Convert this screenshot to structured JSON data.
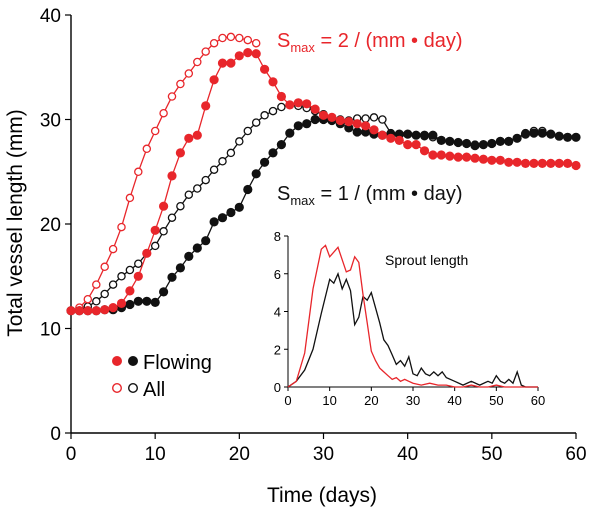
{
  "colors": {
    "red": "#e8262b",
    "black": "#111111",
    "axis": "#000000"
  },
  "chart_data": [
    {
      "type": "line",
      "xlabel": "Time (days)",
      "ylabel": "Total vessel length (mm)",
      "xlim": [
        0,
        60
      ],
      "ylim": [
        0,
        40
      ],
      "xticks": [
        0,
        10,
        20,
        30,
        40,
        50,
        60
      ],
      "yticks": [
        0,
        10,
        20,
        30,
        40
      ],
      "grid": false,
      "annotations": [
        {
          "id": "smax2",
          "text": "S",
          "sub": "max",
          "rest": " = 2 / (mm • day)",
          "color": "red"
        },
        {
          "id": "smax1",
          "text": "S",
          "sub": "max",
          "rest": " = 1 / (mm • day)",
          "color": "black"
        }
      ],
      "legend": {
        "position": "bottom-left",
        "entries": [
          {
            "label": "Flowing",
            "marker": "filled"
          },
          {
            "label": "All",
            "marker": "open"
          }
        ]
      },
      "series": [
        {
          "key": "red_flowing",
          "color": "red",
          "marker": "filled",
          "x": [
            0,
            1,
            2,
            3,
            4,
            5,
            6,
            7,
            8,
            9,
            10,
            11,
            12,
            13,
            14,
            15,
            16,
            17,
            18,
            19,
            20,
            21,
            22,
            23,
            24,
            25,
            26,
            27,
            28,
            29,
            30,
            31,
            32,
            33,
            34,
            35,
            36,
            37,
            38,
            39,
            40,
            41,
            42,
            43,
            44,
            45,
            46,
            47,
            48,
            49,
            50,
            51,
            52,
            53,
            54,
            55,
            56,
            57,
            58,
            59,
            60
          ],
          "y": [
            11.7,
            11.7,
            11.7,
            11.7,
            11.8,
            12.0,
            12.4,
            13.6,
            15.0,
            17.2,
            19.4,
            21.7,
            24.6,
            26.8,
            28.2,
            28.5,
            31.3,
            33.8,
            35.4,
            35.4,
            36.1,
            36.4,
            36.3,
            34.8,
            33.6,
            32.2,
            31.4,
            31.6,
            31.5,
            31.0,
            30.4,
            30.2,
            29.9,
            29.8,
            29.6,
            29.4,
            29.0,
            28.5,
            28.2,
            28.0,
            27.6,
            27.6,
            27.0,
            26.6,
            26.6,
            26.5,
            26.4,
            26.4,
            26.3,
            26.2,
            26.1,
            26.1,
            25.9,
            25.9,
            25.8,
            25.8,
            25.8,
            25.8,
            25.8,
            25.8,
            25.6
          ]
        },
        {
          "key": "red_all",
          "color": "red",
          "marker": "open",
          "x": [
            0,
            1,
            2,
            3,
            4,
            5,
            6,
            7,
            8,
            9,
            10,
            11,
            12,
            13,
            14,
            15,
            16,
            17,
            18,
            19,
            20,
            21,
            22
          ],
          "y": [
            11.7,
            12.0,
            12.8,
            14.2,
            15.9,
            17.6,
            19.7,
            22.5,
            25.0,
            27.2,
            28.9,
            30.6,
            32.2,
            33.4,
            34.4,
            35.5,
            36.5,
            37.3,
            37.8,
            37.9,
            37.8,
            37.6,
            37.3
          ]
        },
        {
          "key": "black_flowing",
          "color": "black",
          "marker": "filled",
          "x": [
            0,
            1,
            2,
            3,
            4,
            5,
            6,
            7,
            8,
            9,
            10,
            11,
            12,
            13,
            14,
            15,
            16,
            17,
            18,
            19,
            20,
            21,
            22,
            23,
            24,
            25,
            26,
            27,
            28,
            29,
            30,
            31,
            32,
            33,
            34,
            35,
            36,
            37,
            38,
            39,
            40,
            41,
            42,
            43,
            44,
            45,
            46,
            47,
            48,
            49,
            50,
            51,
            52,
            53,
            54,
            55,
            56,
            57,
            58,
            59,
            60
          ],
          "y": [
            11.7,
            11.7,
            11.7,
            11.7,
            11.8,
            11.8,
            12.0,
            12.3,
            12.6,
            12.6,
            12.5,
            13.5,
            14.9,
            15.8,
            16.9,
            17.7,
            18.4,
            20.2,
            20.6,
            21.1,
            21.6,
            23.3,
            24.8,
            25.9,
            26.8,
            27.6,
            28.7,
            29.4,
            29.6,
            30.0,
            30.0,
            29.9,
            29.6,
            29.2,
            28.8,
            28.8,
            28.6,
            28.5,
            28.6,
            28.6,
            28.6,
            28.5,
            28.5,
            28.5,
            28.0,
            27.9,
            27.8,
            27.7,
            27.5,
            27.6,
            27.7,
            27.9,
            27.9,
            28.2,
            28.6,
            28.7,
            28.7,
            28.6,
            28.4,
            28.3,
            28.3
          ]
        },
        {
          "key": "black_all",
          "color": "black",
          "marker": "open",
          "x": [
            0,
            1,
            2,
            3,
            4,
            5,
            6,
            7,
            8,
            9,
            10,
            11,
            12,
            13,
            14,
            15,
            16,
            17,
            18,
            19,
            20,
            21,
            22,
            23,
            24,
            25,
            26,
            27,
            28,
            29,
            30,
            31,
            32,
            33,
            34,
            35,
            36,
            37,
            38,
            39,
            40,
            41,
            42,
            43,
            44,
            45,
            46,
            47,
            48,
            49,
            50,
            51,
            52,
            53,
            54,
            55,
            56,
            57,
            58,
            59,
            60
          ],
          "y": [
            11.7,
            11.8,
            12.1,
            12.6,
            13.3,
            14.2,
            15.0,
            15.6,
            16.2,
            17.2,
            17.9,
            19.3,
            20.6,
            21.7,
            22.8,
            23.4,
            24.2,
            25.2,
            26.0,
            26.8,
            27.9,
            28.9,
            29.7,
            30.4,
            30.8,
            31.2,
            31.4,
            31.3,
            31.1,
            30.8,
            30.5,
            30.0,
            30.0,
            29.9,
            30.1,
            30.1,
            30.2,
            30.0,
            28.7,
            28.5,
            28.6,
            28.5,
            28.4,
            28.3,
            28.0,
            27.9,
            27.8,
            27.7,
            27.6,
            27.6,
            27.7,
            27.9,
            27.9,
            28.2,
            28.7,
            28.9,
            28.9,
            28.6,
            28.4,
            28.3,
            28.3
          ]
        }
      ]
    },
    {
      "type": "line",
      "title": "Sprout length",
      "xlim": [
        0,
        60
      ],
      "ylim": [
        0,
        8
      ],
      "xticks": [
        0,
        10,
        20,
        30,
        40,
        50,
        60
      ],
      "yticks": [
        0,
        2,
        4,
        6,
        8
      ],
      "series": [
        {
          "key": "sprout_red",
          "color": "red",
          "x": [
            0,
            2,
            4,
            6,
            8,
            9,
            10,
            12,
            14,
            15,
            16,
            17,
            18,
            19,
            20,
            21,
            22,
            23,
            24,
            25,
            26,
            27,
            28,
            29,
            30,
            32,
            34,
            36,
            38,
            40,
            42,
            44,
            46,
            48,
            50,
            52,
            54,
            56,
            58,
            60
          ],
          "y": [
            0,
            0.3,
            1.8,
            5.2,
            7.3,
            7.5,
            6.9,
            7.4,
            6.1,
            6.2,
            6.9,
            6.6,
            4.9,
            3.4,
            1.9,
            1.4,
            1.0,
            0.8,
            0.6,
            0.4,
            0.5,
            0.3,
            0.4,
            0.3,
            0.2,
            0.1,
            0.2,
            0.1,
            0.1,
            0,
            0,
            0.1,
            0,
            0,
            0.1,
            0,
            0,
            0,
            0,
            0
          ]
        },
        {
          "key": "sprout_black",
          "color": "black",
          "x": [
            0,
            2,
            4,
            6,
            8,
            10,
            11,
            12,
            13,
            14,
            15,
            16,
            17,
            18,
            19,
            20,
            21,
            22,
            23,
            24,
            25,
            26,
            27,
            28,
            29,
            30,
            31,
            32,
            33,
            34,
            35,
            36,
            37,
            38,
            40,
            42,
            44,
            46,
            48,
            49,
            50,
            51,
            52,
            53,
            54,
            55,
            56,
            57,
            58,
            60
          ],
          "y": [
            0,
            0.3,
            0.9,
            2.0,
            3.9,
            5.7,
            5.5,
            6.0,
            5.2,
            5.7,
            5.1,
            3.3,
            3.7,
            4.8,
            4.6,
            5.0,
            4.2,
            3.4,
            2.5,
            2.2,
            1.7,
            1.2,
            1.4,
            1.1,
            1.6,
            0.7,
            0.6,
            1.0,
            0.7,
            0.6,
            0.8,
            0.6,
            0.8,
            0.5,
            0.3,
            0.1,
            0.3,
            0.1,
            0.3,
            0.2,
            0.6,
            0.3,
            0.2,
            0.4,
            0.2,
            0.8,
            0.1,
            0,
            0,
            0
          ]
        }
      ]
    }
  ]
}
